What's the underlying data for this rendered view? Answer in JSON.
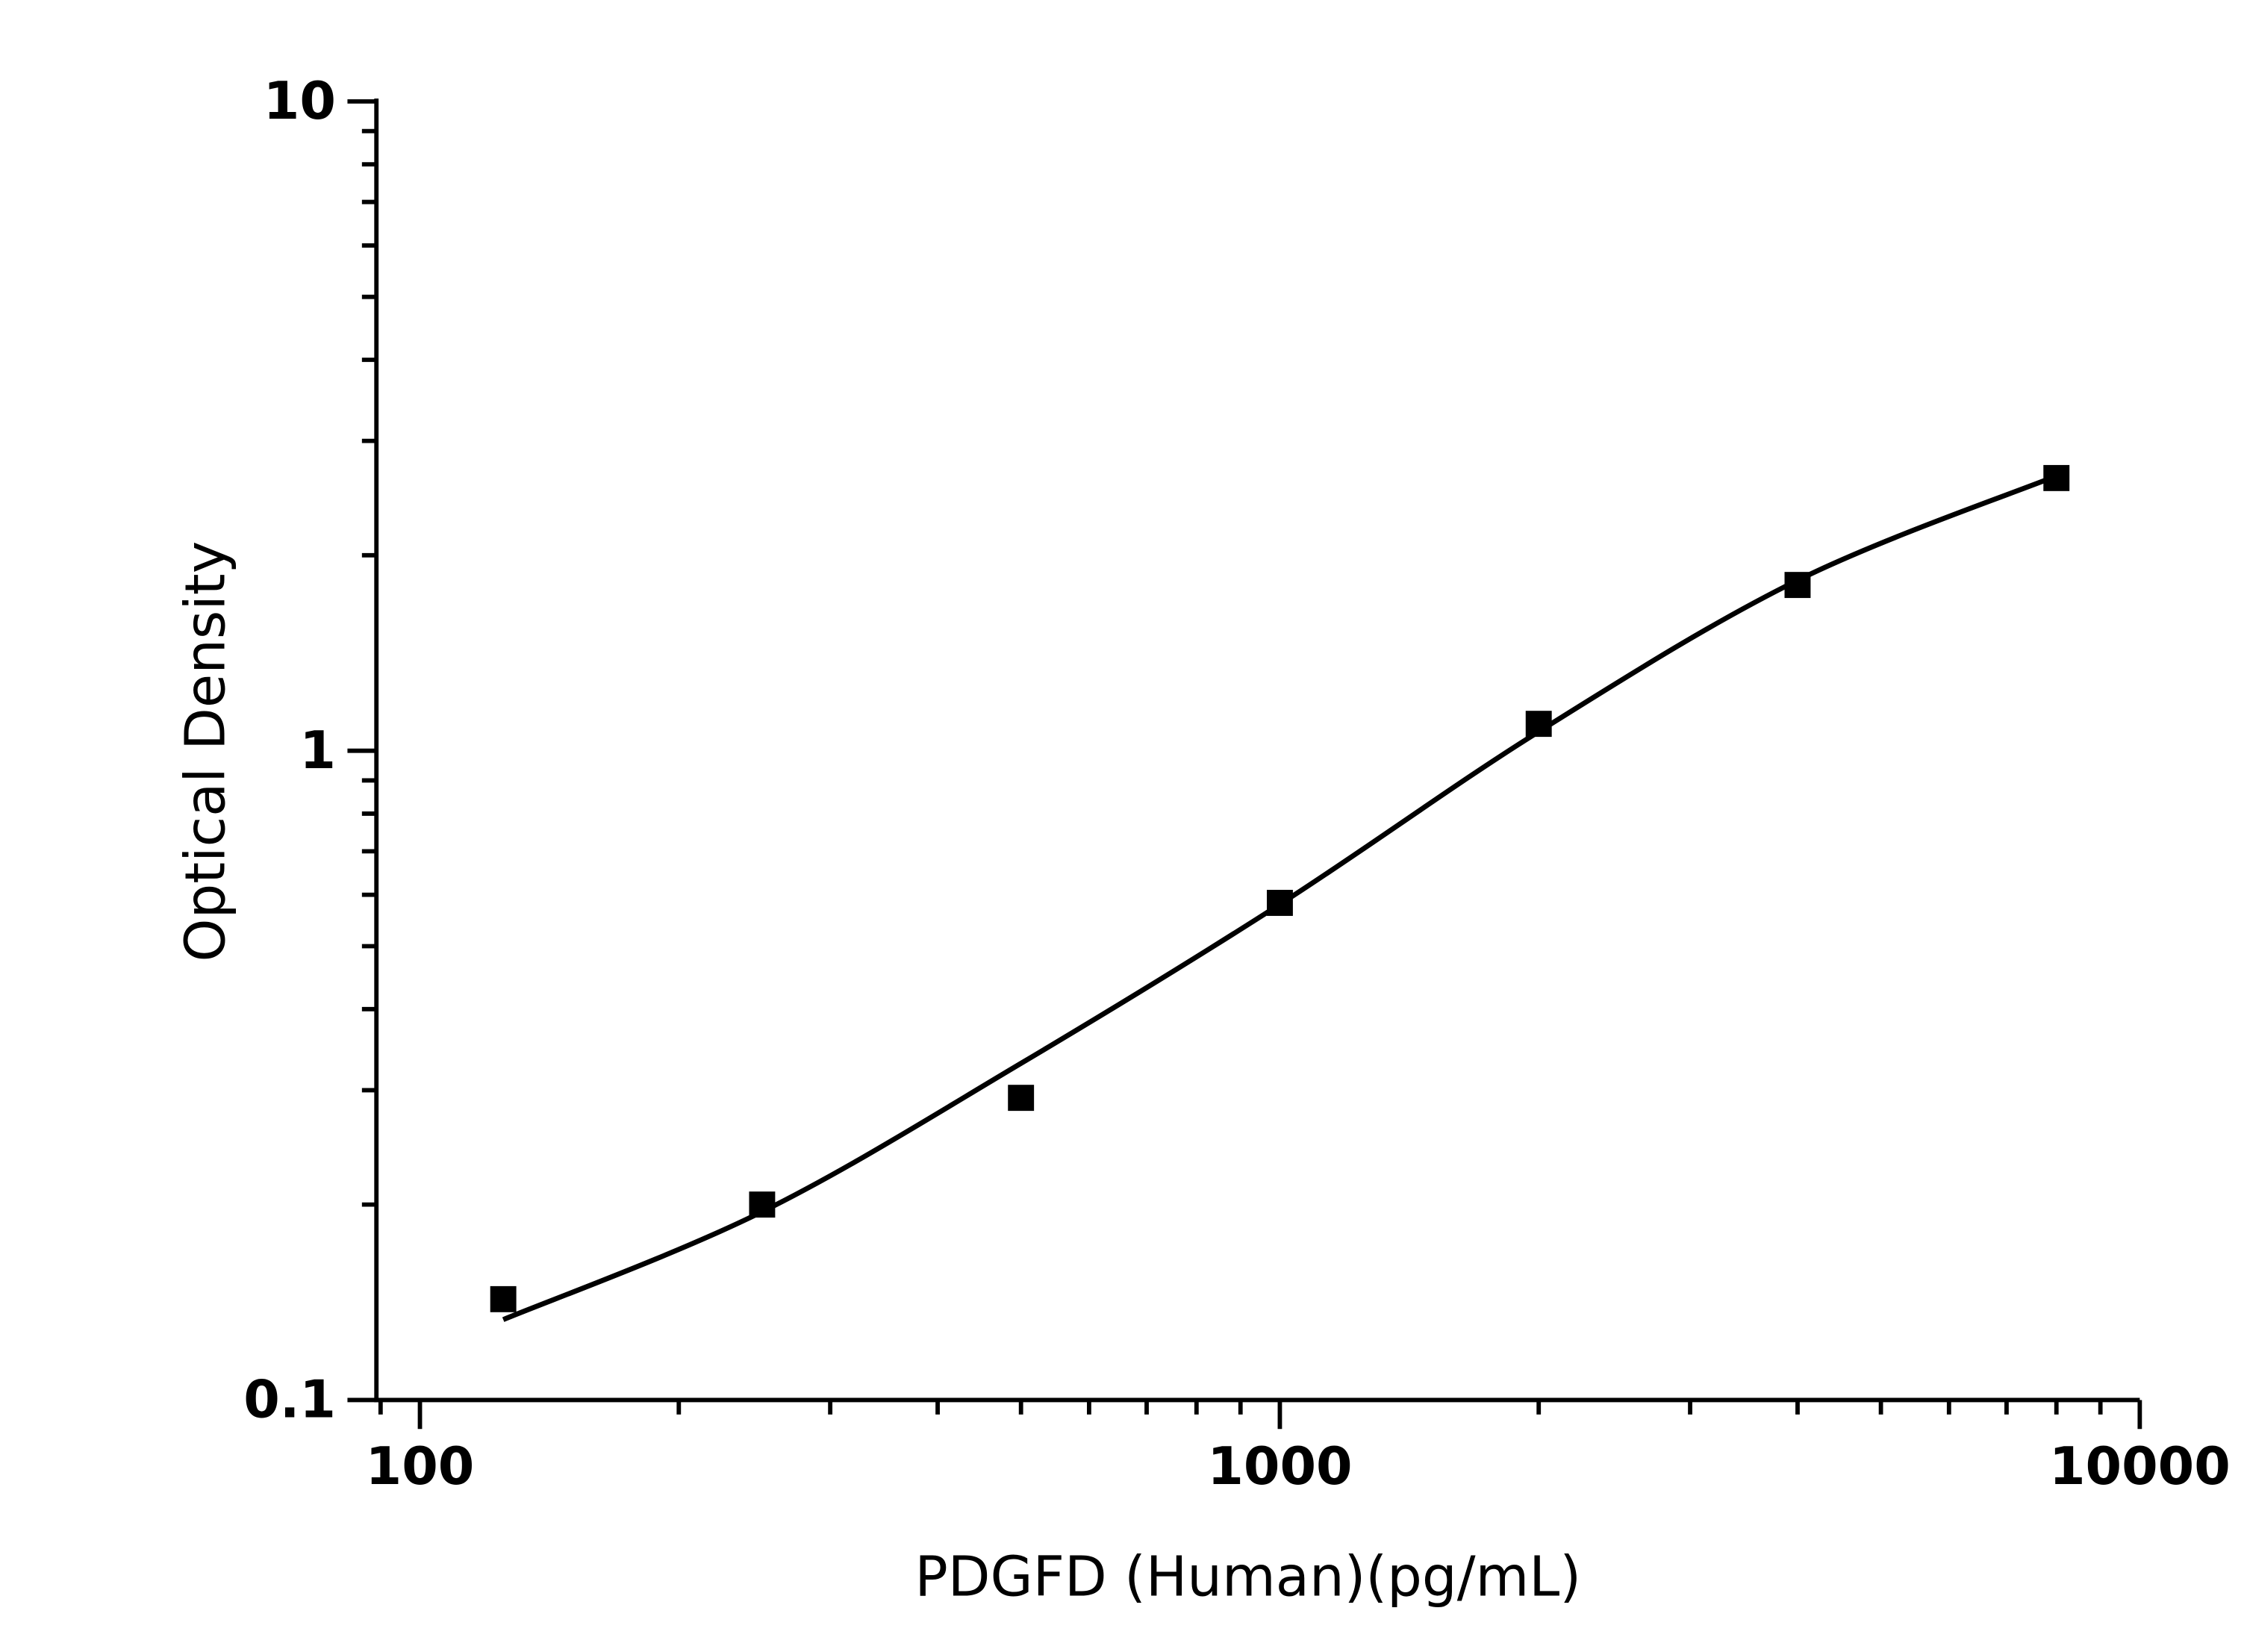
{
  "chart_data": {
    "type": "scatter",
    "title": "",
    "xlabel": "PDGFD (Human)(pg/mL)",
    "ylabel": "Optical Density",
    "x_scale": "log",
    "y_scale": "log",
    "xlim": [
      89,
      10000
    ],
    "ylim": [
      0.1,
      10
    ],
    "x_ticks": [
      {
        "value": 100,
        "label": "100"
      },
      {
        "value": 1000,
        "label": "1000"
      },
      {
        "value": 10000,
        "label": "10000"
      }
    ],
    "y_ticks": [
      {
        "value": 0.1,
        "label": "0.1"
      },
      {
        "value": 1,
        "label": "1"
      },
      {
        "value": 10,
        "label": "10"
      }
    ],
    "grid": false,
    "marker": "square",
    "color": "#000000",
    "points": [
      {
        "x": 125,
        "y": 0.143
      },
      {
        "x": 250,
        "y": 0.2
      },
      {
        "x": 500,
        "y": 0.292
      },
      {
        "x": 1000,
        "y": 0.583
      },
      {
        "x": 2000,
        "y": 1.1
      },
      {
        "x": 4000,
        "y": 1.8
      },
      {
        "x": 8000,
        "y": 2.63
      }
    ],
    "fit_curve": [
      {
        "x": 125,
        "y": 0.133
      },
      {
        "x": 250,
        "y": 0.195
      },
      {
        "x": 500,
        "y": 0.33
      },
      {
        "x": 1000,
        "y": 0.58
      },
      {
        "x": 2000,
        "y": 1.07
      },
      {
        "x": 4000,
        "y": 1.83
      },
      {
        "x": 8000,
        "y": 2.65
      }
    ]
  }
}
